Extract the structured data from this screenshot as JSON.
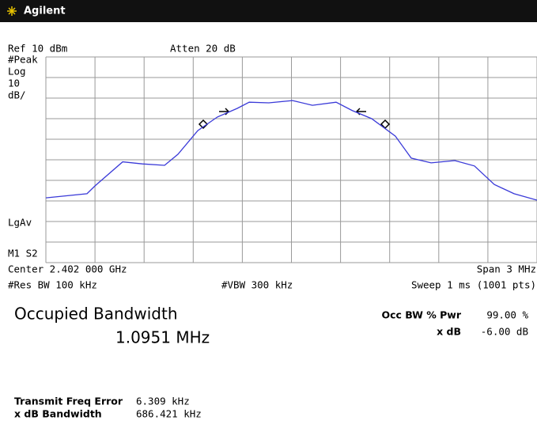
{
  "header": {
    "brand": "Agilent"
  },
  "screen": {
    "ref": "Ref 10 dBm",
    "atten": "Atten 20 dB",
    "detector": "#Peak",
    "scale_type": "Log",
    "scale_value": "10",
    "scale_unit": "dB/",
    "average": "LgAv",
    "mode": "M1 S2",
    "center": "Center 2.402 000 GHz",
    "span": "Span 3 MHz",
    "rbw": "#Res BW 100 kHz",
    "vbw": "#VBW 300 kHz",
    "sweep": "Sweep 1 ms (1001 pts)"
  },
  "chart_data": {
    "type": "line",
    "xlim": [
      2400.5,
      2403.5
    ],
    "ylim": [
      -90,
      10
    ],
    "series": [
      {
        "color": "#3a3ad8",
        "x": [
          2400.5,
          2400.751,
          2400.8,
          2400.969,
          2401.089,
          2401.225,
          2401.307,
          2401.428,
          2401.548,
          2401.669,
          2401.742,
          2401.862,
          2402.007,
          2402.128,
          2402.273,
          2402.37,
          2402.49,
          2402.635,
          2402.732,
          2402.853,
          2402.998,
          2403.118,
          2403.239,
          2403.36,
          2403.5
        ],
        "values": [
          -58.5,
          -56.5,
          -52.7,
          -41,
          -42,
          -42.7,
          -37.3,
          -25.8,
          -19.2,
          -15,
          -12,
          -12.3,
          -11.2,
          -13.5,
          -12,
          -16,
          -20,
          -28.5,
          -39.2,
          -41.5,
          -40.4,
          -43,
          -52,
          -56.5,
          -59.6
        ]
      }
    ]
  },
  "results": {
    "title": "Occupied Bandwidth",
    "value": "1.0951 MHz",
    "rows": [
      {
        "label": "Occ BW % Pwr",
        "value": "99.00 %"
      },
      {
        "label": "x dB",
        "value": "-6.00 dB"
      }
    ],
    "details": [
      {
        "label": "Transmit Freq Error",
        "value": "6.309 kHz"
      },
      {
        "label": "x dB Bandwidth",
        "value": "686.421 kHz"
      }
    ]
  }
}
